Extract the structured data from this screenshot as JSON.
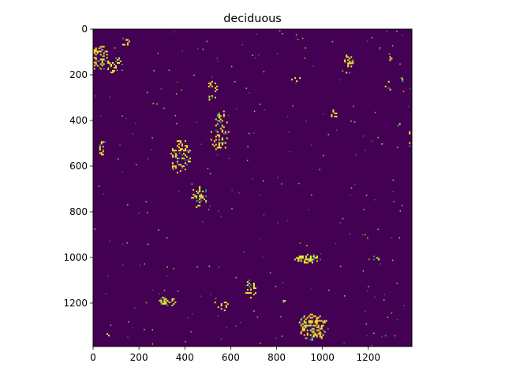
{
  "chart_data": {
    "type": "heatmap",
    "title": "deciduous",
    "xlabel": "",
    "ylabel": "",
    "xlim": [
      0,
      1390
    ],
    "ylim": [
      1390,
      0
    ],
    "x_ticks": [
      "0",
      "200",
      "400",
      "600",
      "800",
      "1000",
      "1200"
    ],
    "y_ticks": [
      "0",
      "200",
      "400",
      "600",
      "800",
      "1000",
      "1200"
    ],
    "colormap": "viridis",
    "colors": {
      "background": "#440154",
      "mid": "#21918c",
      "high": "#fde725"
    },
    "patches": [
      {
        "x": 20,
        "y": 120,
        "rx": 45,
        "ry": 60,
        "density": 0.55
      },
      {
        "x": 90,
        "y": 150,
        "rx": 35,
        "ry": 40,
        "density": 0.55
      },
      {
        "x": 140,
        "y": 50,
        "rx": 20,
        "ry": 20,
        "density": 0.25
      },
      {
        "x": 520,
        "y": 260,
        "rx": 25,
        "ry": 40,
        "density": 0.35
      },
      {
        "x": 505,
        "y": 300,
        "rx": 15,
        "ry": 15,
        "density": 0.25
      },
      {
        "x": 550,
        "y": 440,
        "rx": 45,
        "ry": 90,
        "density": 0.3
      },
      {
        "x": 380,
        "y": 555,
        "rx": 50,
        "ry": 75,
        "density": 0.4
      },
      {
        "x": 35,
        "y": 510,
        "rx": 15,
        "ry": 40,
        "density": 0.5
      },
      {
        "x": 460,
        "y": 730,
        "rx": 40,
        "ry": 50,
        "density": 0.35
      },
      {
        "x": 1110,
        "y": 150,
        "rx": 22,
        "ry": 45,
        "density": 0.6
      },
      {
        "x": 1050,
        "y": 370,
        "rx": 20,
        "ry": 25,
        "density": 0.5
      },
      {
        "x": 930,
        "y": 1000,
        "rx": 60,
        "ry": 22,
        "density": 0.6
      },
      {
        "x": 1180,
        "y": 900,
        "rx": 15,
        "ry": 6,
        "density": 0.6
      },
      {
        "x": 1235,
        "y": 1000,
        "rx": 20,
        "ry": 15,
        "density": 0.45
      },
      {
        "x": 320,
        "y": 1190,
        "rx": 40,
        "ry": 25,
        "density": 0.5
      },
      {
        "x": 680,
        "y": 1140,
        "rx": 30,
        "ry": 50,
        "density": 0.3
      },
      {
        "x": 560,
        "y": 1205,
        "rx": 45,
        "ry": 25,
        "density": 0.25
      },
      {
        "x": 830,
        "y": 1190,
        "rx": 10,
        "ry": 10,
        "density": 0.5
      },
      {
        "x": 960,
        "y": 1300,
        "rx": 70,
        "ry": 60,
        "density": 0.55
      },
      {
        "x": 1330,
        "y": 420,
        "rx": 10,
        "ry": 15,
        "density": 0.4
      },
      {
        "x": 1340,
        "y": 210,
        "rx": 15,
        "ry": 20,
        "density": 0.3
      },
      {
        "x": 1290,
        "y": 120,
        "rx": 12,
        "ry": 15,
        "density": 0.3
      },
      {
        "x": 1280,
        "y": 250,
        "rx": 15,
        "ry": 30,
        "density": 0.2
      },
      {
        "x": 880,
        "y": 210,
        "rx": 30,
        "ry": 20,
        "density": 0.2
      },
      {
        "x": 60,
        "y": 1340,
        "rx": 15,
        "ry": 15,
        "density": 0.3
      },
      {
        "x": 1280,
        "y": 1350,
        "rx": 15,
        "ry": 25,
        "density": 0.25
      },
      {
        "x": 970,
        "y": 620,
        "rx": 20,
        "ry": 15,
        "density": 0.15
      },
      {
        "x": 720,
        "y": 430,
        "rx": 20,
        "ry": 15,
        "density": 0.15
      },
      {
        "x": 1380,
        "y": 480,
        "rx": 10,
        "ry": 40,
        "density": 0.2
      }
    ]
  }
}
